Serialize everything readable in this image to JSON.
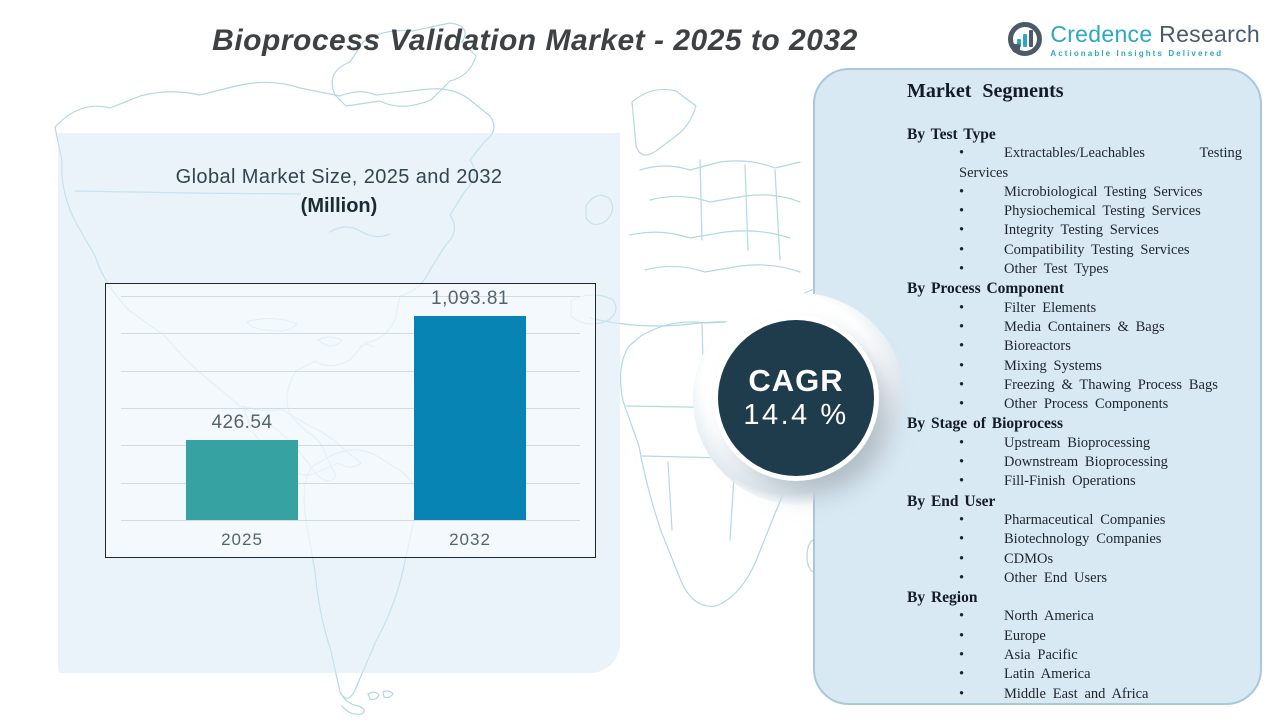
{
  "page": {
    "title": "Bioprocess Validation Market - 2025 to 2032"
  },
  "logo": {
    "brand_primary": "Credence",
    "brand_secondary": "Research",
    "tagline": "Actionable Insights Delivered",
    "teal": "#2aa9c0",
    "dark": "#4b5a66"
  },
  "cagr": {
    "label": "CAGR",
    "value": "14.4 %"
  },
  "chart_data": {
    "type": "bar",
    "title": "Global Market Size, 2025 and 2032",
    "subtitle": "(Million)",
    "categories": [
      "2025",
      "2032"
    ],
    "values": [
      426.54,
      1093.81
    ],
    "value_labels": [
      "426.54",
      "1,093.81"
    ],
    "bar_colors": [
      "#36a2a2",
      "#0884b4"
    ],
    "ylim": [
      0,
      1200
    ],
    "grid_step": 200,
    "grid": true,
    "legend": false,
    "y_axis_labels_visible": false
  },
  "segments": {
    "title": "Market Segments",
    "groups": [
      {
        "label": "By Test Type",
        "items": [
          "Extractables/Leachables Testing Services",
          "Microbiological Testing Services",
          "Physiochemical Testing Services",
          "Integrity Testing Services",
          "Compatibility Testing Services",
          "Other Test Types"
        ]
      },
      {
        "label": "By Process Component",
        "items": [
          "Filter Elements",
          "Media Containers & Bags",
          "Bioreactors",
          "Mixing Systems",
          "Freezing & Thawing Process Bags",
          "Other Process Components"
        ]
      },
      {
        "label": "By Stage of Bioprocess",
        "items": [
          "Upstream Bioprocessing",
          "Downstream Bioprocessing",
          "Fill-Finish Operations"
        ]
      },
      {
        "label": "By End User",
        "items": [
          "Pharmaceutical Companies",
          "Biotechnology Companies",
          "CDMOs",
          "Other End Users"
        ]
      },
      {
        "label": "By Region",
        "items": [
          "North America",
          "Europe",
          "Asia Pacific",
          "Latin America",
          "Middle East and Africa"
        ]
      }
    ]
  },
  "colors": {
    "accent_teal": "#36a2a2",
    "accent_blue": "#0884b4",
    "cagr_circle": "#1e3c4b",
    "panel_fill": "#d9e9f4",
    "panel_border": "#a9c8dc",
    "map_line": "#b2d8e4",
    "title_text": "#3e4144",
    "chart_text": "#33444e"
  }
}
